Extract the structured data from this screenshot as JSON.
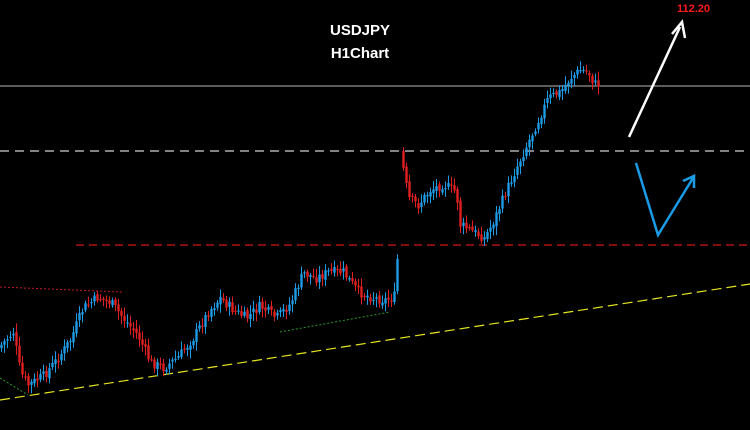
{
  "chart_data": {
    "type": "candlestick",
    "title": "USDJPY",
    "subtitle": "H1Chart",
    "annotations": [
      {
        "kind": "price-label",
        "text": "112.20",
        "color": "#ff1a1a"
      }
    ],
    "colors": {
      "background": "#000000",
      "bull": "#1e9be6",
      "bear": "#e02020",
      "resistance_line": "#b8b8b8",
      "dashed_white": "#d0d0d0",
      "dashed_red": "#d01818",
      "trendline": "#e6e620",
      "arrow_up": "#ffffff",
      "arrow_v": "#1a9be6"
    },
    "grid": false,
    "legend": "none"
  }
}
